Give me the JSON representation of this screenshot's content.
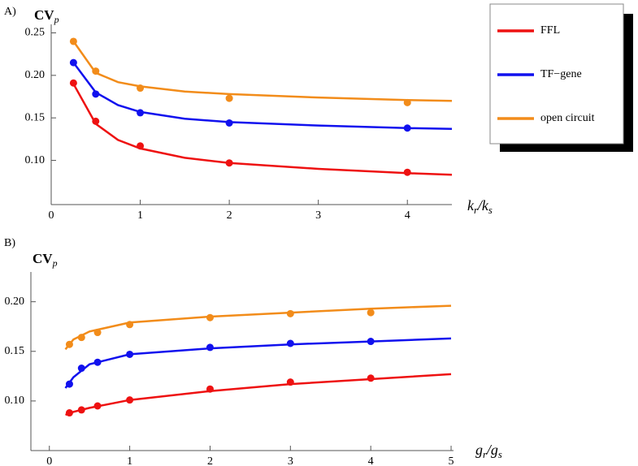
{
  "chart_data": [
    {
      "type": "line",
      "panel_label": "A)",
      "y_label": [
        "CV",
        "p"
      ],
      "x_label": [
        "k",
        "r",
        "/k",
        "s"
      ],
      "xlim": [
        0,
        4.5
      ],
      "xticks": [
        0,
        1,
        2,
        3,
        4
      ],
      "ylim": [
        0.048,
        0.26
      ],
      "yticks": [
        {
          "value": 0.1,
          "label": "0.10"
        },
        0.15,
        {
          "value": 0.2,
          "label": "0.20"
        },
        0.25
      ],
      "legend": "upper right",
      "series": [
        {
          "name": "FFL",
          "color": "#ee1111",
          "x": [
            0.25,
            0.5,
            1,
            2,
            4
          ],
          "values": [
            0.191,
            0.146,
            0.117,
            0.097,
            0.086
          ],
          "fit_x": [
            0.25,
            0.5,
            0.75,
            1,
            1.5,
            2,
            3,
            4,
            4.5
          ],
          "fit_values": [
            0.19,
            0.143,
            0.124,
            0.114,
            0.103,
            0.097,
            0.09,
            0.085,
            0.083
          ]
        },
        {
          "name": "TF−gene",
          "color": "#1111ee",
          "x": [
            0.25,
            0.5,
            1,
            2,
            4
          ],
          "values": [
            0.215,
            0.178,
            0.156,
            0.144,
            0.138
          ],
          "fit_x": [
            0.25,
            0.5,
            0.75,
            1,
            1.5,
            2,
            3,
            4,
            4.5
          ],
          "fit_values": [
            0.215,
            0.18,
            0.165,
            0.157,
            0.149,
            0.145,
            0.141,
            0.138,
            0.137
          ]
        },
        {
          "name": "open circuit",
          "color": "#f28c1a",
          "x": [
            0.25,
            0.5,
            1,
            2,
            4
          ],
          "values": [
            0.24,
            0.205,
            0.185,
            0.173,
            0.168
          ],
          "fit_x": [
            0.25,
            0.5,
            0.75,
            1,
            1.5,
            2,
            3,
            4,
            4.5
          ],
          "fit_values": [
            0.24,
            0.203,
            0.192,
            0.187,
            0.181,
            0.178,
            0.174,
            0.171,
            0.17
          ]
        }
      ]
    },
    {
      "type": "line",
      "panel_label": "B)",
      "y_label": [
        "CV",
        "p"
      ],
      "x_label": [
        "g",
        "r",
        "/g",
        "s"
      ],
      "xlim": [
        -0.23,
        5.03
      ],
      "xticks": [
        0,
        1,
        2,
        3,
        4,
        5
      ],
      "ylim": [
        0.05,
        0.23
      ],
      "yticks": [
        {
          "value": 0.1,
          "label": "0.10"
        },
        0.15,
        {
          "value": 0.2,
          "label": "0.20"
        }
      ],
      "series": [
        {
          "name": "FFL",
          "color": "#ee1111",
          "x": [
            0.25,
            0.4,
            0.6,
            1,
            2,
            3,
            4
          ],
          "values": [
            0.088,
            0.091,
            0.095,
            0.101,
            0.112,
            0.119,
            0.123
          ],
          "fit_x": [
            0.2,
            0.3,
            0.5,
            1,
            2,
            3,
            4,
            5
          ],
          "fit_values": [
            0.086,
            0.089,
            0.093,
            0.101,
            0.11,
            0.117,
            0.122,
            0.127
          ]
        },
        {
          "name": "TF−gene",
          "color": "#1111ee",
          "x": [
            0.25,
            0.4,
            0.6,
            1,
            2,
            3,
            4
          ],
          "values": [
            0.117,
            0.133,
            0.139,
            0.147,
            0.154,
            0.158,
            0.16
          ],
          "fit_x": [
            0.2,
            0.3,
            0.5,
            1,
            2,
            3,
            4,
            5
          ],
          "fit_values": [
            0.113,
            0.124,
            0.137,
            0.147,
            0.153,
            0.157,
            0.16,
            0.163
          ]
        },
        {
          "name": "open circuit",
          "color": "#f28c1a",
          "x": [
            0.25,
            0.4,
            0.6,
            1,
            2,
            3,
            4
          ],
          "values": [
            0.157,
            0.164,
            0.169,
            0.177,
            0.184,
            0.188,
            0.189
          ],
          "fit_x": [
            0.2,
            0.3,
            0.5,
            1,
            2,
            3,
            4,
            5
          ],
          "fit_values": [
            0.152,
            0.162,
            0.17,
            0.179,
            0.185,
            0.189,
            0.193,
            0.196
          ]
        }
      ]
    }
  ]
}
